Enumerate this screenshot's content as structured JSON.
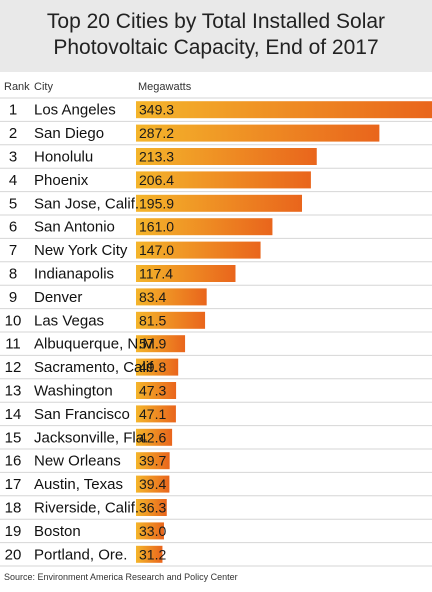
{
  "title_line1": "Top 20 Cities by Total Installed Solar",
  "title_line2": "Photovoltaic Capacity, End of 2017",
  "source": "Source: Environment America Research and Policy Center",
  "colors": {
    "bar_light": "#f4b52b",
    "bar_dark": "#e9651c",
    "title_bg": "#e9e9e9"
  },
  "chart_data": {
    "type": "bar",
    "orientation": "horizontal",
    "column_headers": [
      "Rank",
      "City",
      "Megawatts"
    ],
    "rows": [
      {
        "rank": "1",
        "city": "Los Angeles",
        "value": 349.3
      },
      {
        "rank": "2",
        "city": "San Diego",
        "value": 287.2
      },
      {
        "rank": "3",
        "city": "Honolulu",
        "value": 213.3
      },
      {
        "rank": "4",
        "city": "Phoenix",
        "value": 206.4
      },
      {
        "rank": "5",
        "city": "San Jose, Calif.",
        "value": 195.9
      },
      {
        "rank": "6",
        "city": "San Antonio",
        "value": 161.0
      },
      {
        "rank": "7",
        "city": "New York City",
        "value": 147.0
      },
      {
        "rank": "8",
        "city": "Indianapolis",
        "value": 117.4
      },
      {
        "rank": "9",
        "city": "Denver",
        "value": 83.4
      },
      {
        "rank": "10",
        "city": "Las Vegas",
        "value": 81.5
      },
      {
        "rank": "11",
        "city": "Albuquerque, N.M.",
        "value": 57.9
      },
      {
        "rank": "12",
        "city": "Sacramento, Calif.",
        "value": 49.8
      },
      {
        "rank": "13",
        "city": "Washington",
        "value": 47.3
      },
      {
        "rank": "14",
        "city": "San Francisco",
        "value": 47.1
      },
      {
        "rank": "15",
        "city": "Jacksonville, Fla.",
        "value": 42.6
      },
      {
        "rank": "16",
        "city": "New Orleans",
        "value": 39.7
      },
      {
        "rank": "17",
        "city": "Austin, Texas",
        "value": 39.4
      },
      {
        "rank": "18",
        "city": "Riverside, Calif.",
        "value": 36.3
      },
      {
        "rank": "19",
        "city": "Boston",
        "value": 33.0
      },
      {
        "rank": "20",
        "city": "Portland, Ore.",
        "value": 31.2
      }
    ],
    "legend": "none",
    "grid": false
  }
}
